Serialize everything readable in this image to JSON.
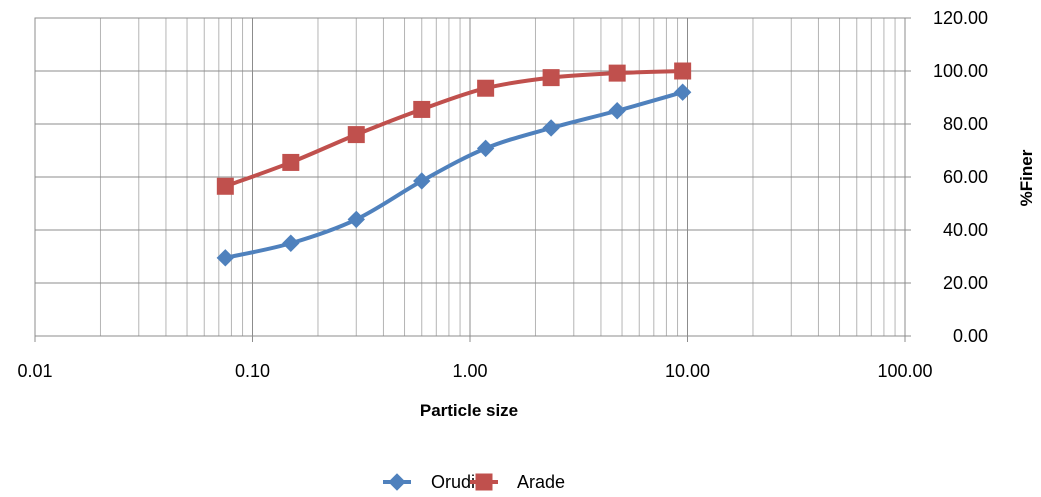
{
  "chart_data": {
    "type": "line",
    "title": "",
    "xlabel": "Particle size",
    "ylabel": "%Finer",
    "x_scale": "log",
    "xlim": [
      0.01,
      100
    ],
    "ylim": [
      0,
      120
    ],
    "x_tick_labels": [
      "0.01",
      "0.10",
      "1.00",
      "10.00",
      "100.00"
    ],
    "y_tick_labels": [
      "0.00",
      "20.00",
      "40.00",
      "60.00",
      "80.00",
      "100.00",
      "120.00"
    ],
    "y_axis_position": "right",
    "grid": true,
    "legend_position": "bottom",
    "series": [
      {
        "name": "Orudi",
        "color": "#4F81BD",
        "marker": "diamond",
        "x": [
          0.075,
          0.15,
          0.3,
          0.6,
          1.18,
          2.36,
          4.75,
          9.5
        ],
        "y": [
          29.5,
          35.0,
          44.0,
          58.5,
          70.8,
          78.5,
          85.0,
          92.0
        ]
      },
      {
        "name": "Arade",
        "color": "#C0504D",
        "marker": "square",
        "x": [
          0.075,
          0.15,
          0.3,
          0.6,
          1.18,
          2.36,
          4.75,
          9.5
        ],
        "y": [
          56.5,
          65.5,
          76.0,
          85.5,
          93.5,
          97.5,
          99.2,
          100.0
        ]
      }
    ]
  }
}
